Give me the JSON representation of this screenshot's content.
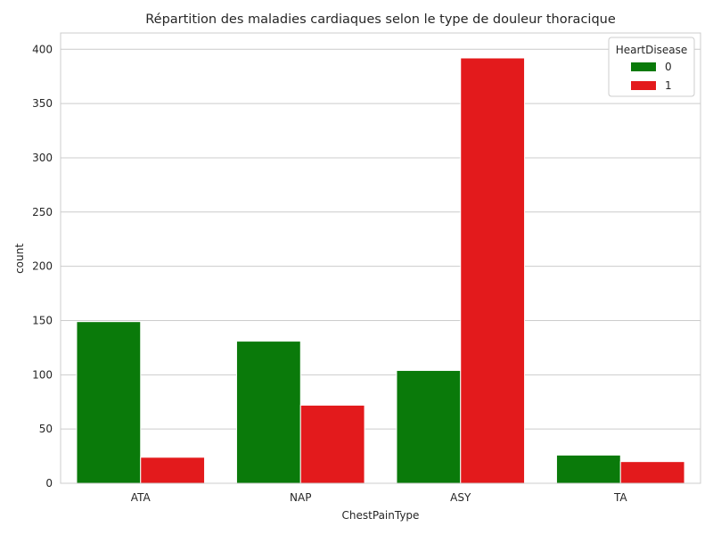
{
  "chart_data": {
    "type": "bar",
    "title": "Répartition des maladies cardiaques selon le type de douleur thoracique",
    "xlabel": "ChestPainType",
    "ylabel": "count",
    "categories": [
      "ATA",
      "NAP",
      "ASY",
      "TA"
    ],
    "series": [
      {
        "name": "0",
        "values": [
          149,
          131,
          104,
          26
        ],
        "color": "#0a7a0a"
      },
      {
        "name": "1",
        "values": [
          24,
          72,
          392,
          20
        ],
        "color": "#e31a1c"
      }
    ],
    "ylim": [
      0,
      415
    ],
    "yticks": [
      0,
      50,
      100,
      150,
      200,
      250,
      300,
      350,
      400
    ],
    "grid": true,
    "legend": {
      "title": "HeartDisease",
      "placement": "top-right"
    }
  }
}
